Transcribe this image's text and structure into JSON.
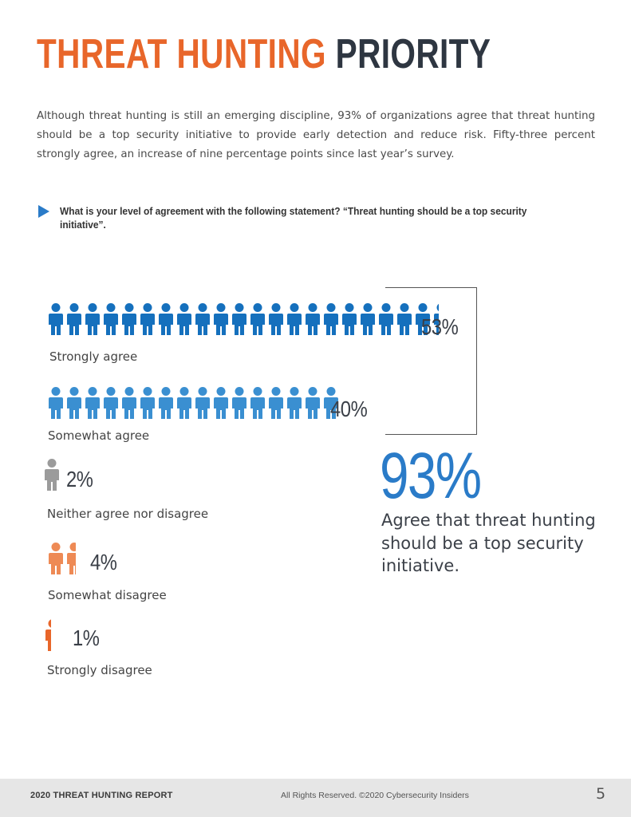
{
  "header": {
    "title_highlight": "THREAT HUNTING",
    "title_rest": "PRIORITY"
  },
  "intro": "Although threat hunting is still an emerging discipline, 93% of organizations agree that threat hunting should be a top security initiative to provide early detection and reduce risk. Fifty-three percent strongly agree, an increase of nine percentage points since last year’s survey.",
  "question": "What is your level of agreement with the following statement? “Threat hunting should be a top security initiative”.",
  "chart_data": {
    "type": "pictograph",
    "categories": [
      "Strongly agree",
      "Somewhat agree",
      "Neither agree nor disagree",
      "Somewhat disagree",
      "Strongly disagree"
    ],
    "values": [
      53,
      40,
      2,
      4,
      1
    ],
    "value_labels": [
      "53%",
      "40%",
      "2%",
      "4%",
      "1%"
    ],
    "colors": [
      "#1570bd",
      "#3a8fd1",
      "#9b9b9b",
      "#ee8a55",
      "#e8662a"
    ],
    "icons_per_percent": "one person figure per ~2.5%"
  },
  "summary": {
    "value": "93%",
    "text": "Agree that threat hunting should be a top security initiative."
  },
  "footer": {
    "report": "2020 THREAT HUNTING REPORT",
    "rights": "All Rights Reserved.  ©2020 Cybersecurity Insiders",
    "page": "5"
  }
}
